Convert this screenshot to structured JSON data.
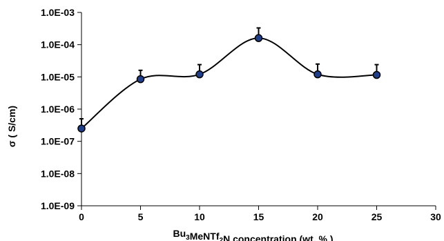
{
  "chart_data": {
    "type": "scatter",
    "line_style": "smoothed",
    "xlabel_parts": [
      {
        "text": "Bu",
        "sub": false
      },
      {
        "text": "3",
        "sub": true
      },
      {
        "text": "MeNTf",
        "sub": false
      },
      {
        "text": "2",
        "sub": true
      },
      {
        "text": "N concentration (wt. % )",
        "sub": false
      }
    ],
    "ylabel": "σ  ( S/cm)",
    "x_ticks": [
      0,
      5,
      10,
      15,
      20,
      25,
      30
    ],
    "x_tick_labels": [
      "0",
      "5",
      "10",
      "15",
      "20",
      "25",
      "30"
    ],
    "xlim": [
      0,
      30
    ],
    "y_scale": "log",
    "ylim": [
      1e-09,
      0.001
    ],
    "y_ticks": [
      1e-09,
      1e-08,
      1e-07,
      1e-06,
      1e-05,
      0.0001,
      0.001
    ],
    "y_tick_labels": [
      "1.0E-09",
      "1.0E-08",
      "1.0E-07",
      "1.0E-06",
      "1.0E-05",
      "1.0E-04",
      "1.0E-03"
    ],
    "grid": false,
    "legend": false,
    "series": [
      {
        "x": [
          0,
          5,
          10,
          15,
          20,
          25
        ],
        "y": [
          2.5e-07,
          8.5e-06,
          1.2e-05,
          0.00016,
          1.2e-05,
          1.15e-05
        ],
        "error_upper": [
          5e-07,
          1.6e-05,
          2.4e-05,
          0.00033,
          2.5e-05,
          2.4e-05
        ],
        "marker_color": "#1f3f8a",
        "line_color": "#000000"
      }
    ]
  }
}
